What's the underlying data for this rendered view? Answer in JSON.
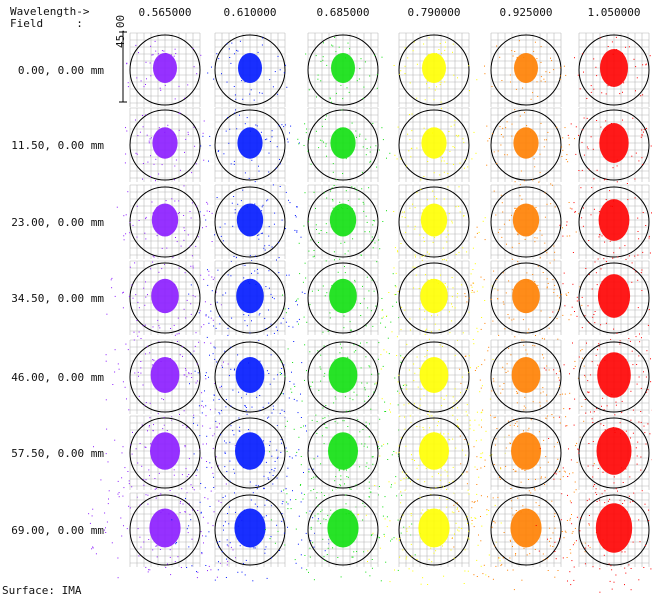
{
  "header": {
    "wavelength_label": "Wavelength->",
    "field_label": "Field     :"
  },
  "wavelengths": [
    {
      "label": "0.565000",
      "color": "#8b1bff"
    },
    {
      "label": "0.610000",
      "color": "#0018ff"
    },
    {
      "label": "0.685000",
      "color": "#10e010"
    },
    {
      "label": "0.790000",
      "color": "#ffff00"
    },
    {
      "label": "0.925000",
      "color": "#ff8000"
    },
    {
      "label": "1.050000",
      "color": "#ff0000"
    }
  ],
  "fields": [
    {
      "label": "0.00, 0.00",
      "unit": "mm"
    },
    {
      "label": "11.50, 0.00",
      "unit": "mm"
    },
    {
      "label": "23.00, 0.00",
      "unit": "mm"
    },
    {
      "label": "34.50, 0.00",
      "unit": "mm"
    },
    {
      "label": "46.00, 0.00",
      "unit": "mm"
    },
    {
      "label": "57.50, 0.00",
      "unit": "mm"
    },
    {
      "label": "69.00, 0.00",
      "unit": "mm"
    }
  ],
  "scale_label": "45.00",
  "footer": {
    "surface": "Surface: IMA"
  }
}
